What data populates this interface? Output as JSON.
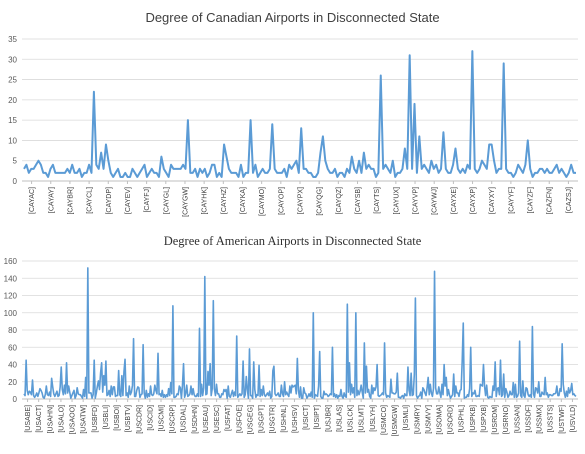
{
  "chart_data": [
    {
      "type": "line",
      "title": "Degree of Canadian Airports in Disconnected State",
      "xlabel": "",
      "ylabel": "",
      "ylim": [
        0,
        35
      ],
      "yticks": [
        0,
        5,
        10,
        15,
        20,
        25,
        30,
        35
      ],
      "grid": true,
      "legend": "none",
      "color": "#5b9bd5",
      "x_tick_labels": [
        "[CAYAC]",
        "[CAYAY]",
        "[CAYBR]",
        "[CAYCL]",
        "[CAYDP]",
        "[CAYEV]",
        "[CAYFJ]",
        "[CAYGL]",
        "[CAYGW]",
        "[CAYHK]",
        "[CAYHZ]",
        "[CAYKA]",
        "[CAYMO]",
        "[CAYOP]",
        "[CAYPX]",
        "[CAYQG]",
        "[CAYQZ]",
        "[CAYSB]",
        "[CAYTS]",
        "[CAYUX]",
        "[CAYVP]",
        "[CAYWJ]",
        "[CAYXE]",
        "[CAYXP]",
        "[CAYXY]",
        "[CAYYF]",
        "[CAYZF]",
        "[CAZFN]",
        "[CAZSJ]"
      ],
      "values": [
        3,
        4,
        2,
        3,
        3,
        4,
        5,
        4,
        2,
        2,
        1,
        3,
        4,
        2,
        2,
        2,
        2,
        2,
        3,
        2,
        4,
        2,
        2,
        3,
        1,
        2,
        2,
        4,
        2,
        22,
        4,
        3,
        7,
        3,
        9,
        5,
        2,
        1,
        2,
        3,
        1,
        1,
        2,
        1,
        1,
        3,
        2,
        1,
        2,
        3,
        4,
        1,
        2,
        3,
        2,
        2,
        1,
        6,
        3,
        2,
        1,
        4,
        3,
        3,
        3,
        3,
        4,
        3,
        15,
        2,
        2,
        3,
        1,
        3,
        2,
        3,
        1,
        2,
        4,
        4,
        1,
        2,
        1,
        9,
        6,
        3,
        2,
        2,
        2,
        1,
        4,
        1,
        2,
        2,
        15,
        2,
        4,
        1,
        2,
        3,
        2,
        2,
        3,
        14,
        3,
        2,
        2,
        2,
        3,
        1,
        4,
        3,
        4,
        5,
        2,
        13,
        3,
        3,
        2,
        2,
        1,
        1,
        2,
        7,
        11,
        5,
        3,
        2,
        2,
        3,
        1,
        2,
        2,
        1,
        3,
        2,
        6,
        3,
        2,
        5,
        2,
        7,
        3,
        4,
        3,
        3,
        1,
        2,
        26,
        3,
        4,
        3,
        2,
        5,
        1,
        2,
        2,
        3,
        8,
        3,
        31,
        3,
        19,
        2,
        11,
        3,
        4,
        3,
        2,
        5,
        3,
        4,
        2,
        3,
        12,
        3,
        2,
        2,
        4,
        8,
        3,
        2,
        3,
        2,
        4,
        3,
        32,
        3,
        2,
        3,
        5,
        4,
        3,
        9,
        9,
        5,
        2,
        3,
        3,
        29,
        3,
        2,
        2,
        1,
        2,
        4,
        3,
        2,
        4,
        10,
        3,
        1,
        2,
        2,
        3,
        3,
        2,
        3,
        2,
        2,
        3,
        4,
        2,
        3,
        2,
        1,
        2,
        4,
        2,
        2
      ]
    },
    {
      "type": "line",
      "title": "Degree of American Airports in Disconnected State",
      "xlabel": "",
      "ylabel": "",
      "ylim": [
        0,
        160
      ],
      "yticks": [
        0,
        20,
        40,
        60,
        80,
        100,
        120,
        140,
        160
      ],
      "grid": true,
      "legend": "none",
      "color": "#5b9bd5",
      "x_tick_labels": [
        "[USABE]",
        "[USACT]",
        "[USAHN]",
        "[USALO]",
        "[USAOO]",
        "[USATW]",
        "[USBFD]",
        "[USBLI]",
        "[USBOI]",
        "[USBTV]",
        "[USCDR]",
        "[USCID]",
        "[USCMI]",
        "[USCRP]",
        "[USDAL]",
        "[USDHN]",
        "[USEAU]",
        "[USESC]",
        "[USFAT]",
        "[USFOE]",
        "[USGEG]",
        "[USGPT]",
        "[USGTR]",
        "[USHNL]",
        "[USHSV]",
        "[USICT]",
        "[USIPT]",
        "[USJBR]",
        "[USLAS]",
        "[USLCK]",
        "[USLMT]",
        "[USLYH]",
        "[USMCO]",
        "[USMGW]",
        "[USMLI]",
        "[USMRY]",
        "[USMVY]",
        "[USOMA]",
        "[USORD]",
        "[USPHL]",
        "[USPKB]",
        "[USPXB]",
        "[USRDM]",
        "[USRNO]",
        "[USSAN]",
        "[USSDF]",
        "[USSMX]",
        "[USSTS]",
        "[USTWF]",
        "[USVLD]"
      ]
    }
  ]
}
